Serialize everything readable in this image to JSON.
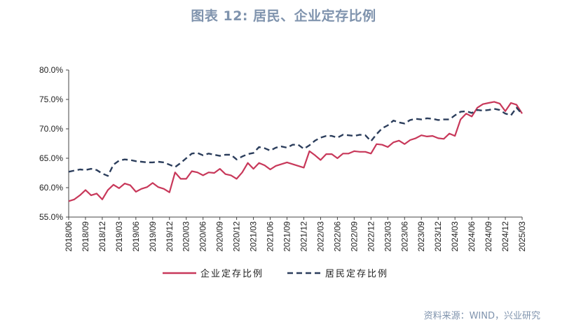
{
  "title": "图表 12: 居民、企业定存比例",
  "source": "资料来源：WIND，兴业研究",
  "chart_data": {
    "type": "line",
    "ylim": [
      55,
      80
    ],
    "yticks": [
      "55.0%",
      "60.0%",
      "65.0%",
      "70.0%",
      "75.0%",
      "80.0%"
    ],
    "ytick_values": [
      55,
      60,
      65,
      70,
      75,
      80
    ],
    "x": [
      "2018/06",
      "2018/07",
      "2018/08",
      "2018/09",
      "2018/10",
      "2018/11",
      "2018/12",
      "2019/01",
      "2019/02",
      "2019/03",
      "2019/04",
      "2019/05",
      "2019/06",
      "2019/07",
      "2019/08",
      "2019/09",
      "2019/10",
      "2019/11",
      "2019/12",
      "2020/01",
      "2020/02",
      "2020/03",
      "2020/04",
      "2020/05",
      "2020/06",
      "2020/07",
      "2020/08",
      "2020/09",
      "2020/10",
      "2020/11",
      "2020/12",
      "2021/01",
      "2021/02",
      "2021/03",
      "2021/04",
      "2021/05",
      "2021/06",
      "2021/07",
      "2021/08",
      "2021/09",
      "2021/10",
      "2021/11",
      "2021/12",
      "2022/01",
      "2022/02",
      "2022/03",
      "2022/04",
      "2022/05",
      "2022/06",
      "2022/07",
      "2022/08",
      "2022/09",
      "2022/10",
      "2022/11",
      "2022/12",
      "2023/01",
      "2023/02",
      "2023/03",
      "2023/04",
      "2023/05",
      "2023/06",
      "2023/07",
      "2023/08",
      "2023/09",
      "2023/10",
      "2023/11",
      "2023/12",
      "2024/01",
      "2024/02",
      "2024/03",
      "2024/04",
      "2024/05",
      "2024/06",
      "2024/07",
      "2024/08",
      "2024/09",
      "2024/10",
      "2024/11",
      "2024/12",
      "2025/01",
      "2025/02",
      "2025/03"
    ],
    "xticks": [
      "2018/06",
      "2018/09",
      "2018/12",
      "2019/03",
      "2019/06",
      "2019/09",
      "2019/12",
      "2020/03",
      "2020/06",
      "2020/09",
      "2020/12",
      "2021/03",
      "2021/06",
      "2021/09",
      "2021/12",
      "2022/03",
      "2022/06",
      "2022/09",
      "2022/12",
      "2023/03",
      "2023/06",
      "2023/09",
      "2023/12",
      "2024/03",
      "2024/06",
      "2024/09",
      "2024/12",
      "2025/03"
    ],
    "legend_position": "bottom",
    "series": [
      {
        "name": "企业定存比例",
        "color": "#c8385a",
        "style": "solid",
        "values": [
          57.7,
          58.0,
          58.7,
          59.6,
          58.7,
          59.0,
          58.0,
          59.6,
          60.5,
          59.9,
          60.7,
          60.4,
          59.3,
          59.8,
          60.1,
          60.8,
          60.1,
          59.8,
          59.2,
          62.6,
          61.5,
          61.5,
          62.8,
          62.6,
          62.1,
          62.6,
          62.5,
          63.2,
          62.3,
          62.1,
          61.5,
          62.6,
          64.2,
          63.2,
          64.2,
          63.8,
          63.1,
          63.7,
          64.0,
          64.3,
          64.0,
          63.7,
          63.4,
          66.2,
          65.5,
          64.7,
          65.7,
          65.7,
          65.0,
          65.8,
          65.8,
          66.2,
          66.1,
          66.1,
          65.8,
          67.4,
          67.3,
          66.9,
          67.7,
          68.0,
          67.4,
          68.1,
          68.4,
          68.9,
          68.7,
          68.8,
          68.4,
          68.3,
          69.2,
          68.8,
          71.6,
          72.6,
          72.1,
          73.6,
          74.2,
          74.4,
          74.6,
          74.3,
          73.0,
          74.4,
          74.1,
          72.6
        ]
      },
      {
        "name": "居民定存比例",
        "color": "#2c3e5c",
        "style": "dashed",
        "values": [
          62.7,
          62.9,
          63.1,
          63.0,
          63.2,
          63.0,
          62.4,
          62.0,
          63.9,
          64.6,
          64.8,
          64.7,
          64.5,
          64.4,
          64.3,
          64.3,
          64.4,
          64.3,
          63.9,
          63.5,
          64.2,
          65.0,
          65.8,
          65.9,
          65.5,
          65.8,
          65.6,
          65.4,
          65.6,
          65.6,
          64.8,
          65.3,
          65.7,
          65.9,
          66.9,
          66.7,
          66.3,
          66.8,
          67.0,
          66.8,
          67.3,
          67.3,
          66.6,
          67.2,
          68.0,
          68.5,
          68.8,
          68.8,
          68.5,
          69.0,
          68.9,
          68.8,
          69.0,
          68.9,
          67.9,
          69.1,
          70.1,
          70.6,
          71.4,
          71.1,
          70.9,
          71.5,
          71.7,
          71.6,
          71.8,
          71.7,
          71.5,
          71.6,
          71.6,
          72.3,
          72.9,
          73.0,
          72.7,
          73.2,
          73.1,
          73.2,
          73.4,
          73.2,
          72.6,
          72.3,
          73.6,
          72.5
        ]
      }
    ]
  }
}
